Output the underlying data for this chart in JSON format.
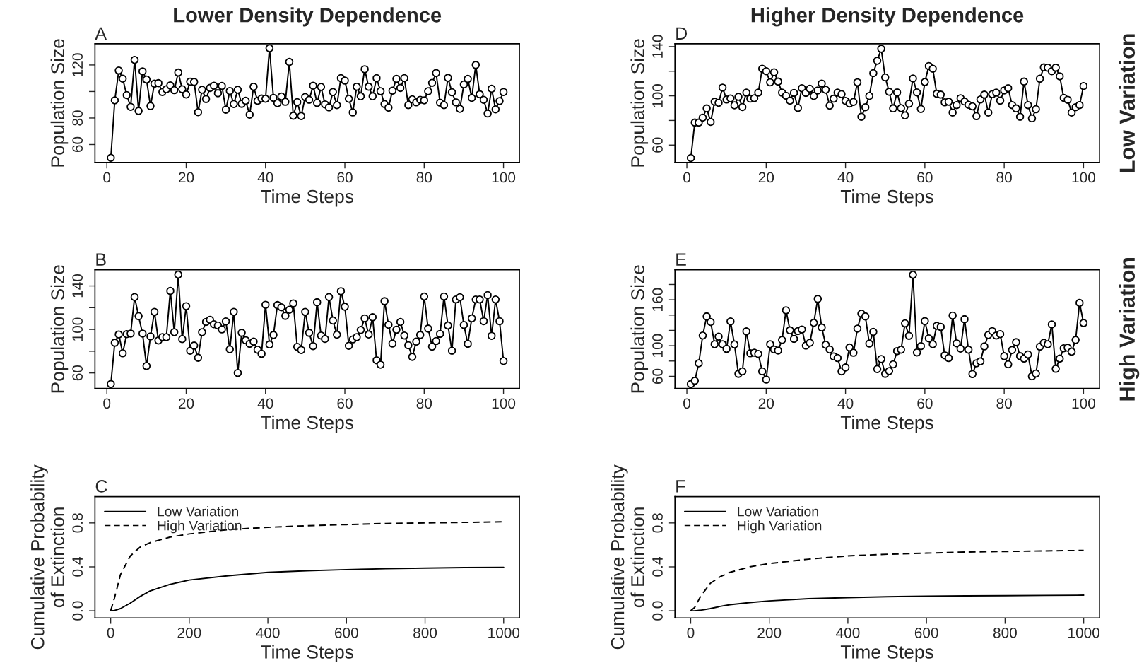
{
  "chart_data": [
    {
      "type": "line",
      "title": "Lower Density Dependence",
      "xlabel": "Time Steps",
      "ylabel": "Population Size",
      "annotations": [
        "A"
      ],
      "marker": "circle",
      "xlim": [
        -3,
        104
      ],
      "xticks": [
        0,
        20,
        40,
        60,
        80,
        100
      ],
      "ylim": [
        46.5,
        136
      ],
      "yticks": [
        60,
        80,
        {
          "value": 100,
          "label": null
        },
        120
      ],
      "x": [
        1,
        2,
        3,
        4,
        5,
        6,
        7,
        8,
        9,
        10,
        11,
        12,
        13,
        14,
        15,
        16,
        17,
        18,
        19,
        20,
        21,
        22,
        23,
        24,
        25,
        26,
        27,
        28,
        29,
        30,
        31,
        32,
        33,
        34,
        35,
        36,
        37,
        38,
        39,
        40,
        41,
        42,
        43,
        44,
        45,
        46,
        47,
        48,
        49,
        50,
        51,
        52,
        53,
        54,
        55,
        56,
        57,
        58,
        59,
        60,
        61,
        62,
        63,
        64,
        65,
        66,
        67,
        68,
        69,
        70,
        71,
        72,
        73,
        74,
        75,
        76,
        77,
        78,
        79,
        80,
        81,
        82,
        83,
        84,
        85,
        86,
        87,
        88,
        89,
        90,
        91,
        92,
        93,
        94,
        95,
        96,
        97,
        98,
        99,
        100
      ],
      "series": [
        {
          "color": "#000000",
          "values": [
            50,
            93.3,
            115.8,
            109.7,
            97.3,
            88.4,
            123.8,
            85.3,
            115.2,
            109,
            89,
            105.9,
            106.3,
            99.6,
            101.7,
            104.6,
            101,
            114.3,
            101.7,
            97.7,
            107.4,
            107.2,
            84.4,
            101.3,
            94.3,
            102.7,
            104.4,
            98.7,
            104.2,
            86.3,
            100.4,
            90.5,
            101.3,
            90.7,
            93,
            82.5,
            103.6,
            93,
            94.7,
            94.5,
            132.6,
            95.2,
            91.2,
            96.2,
            92.2,
            122.3,
            81.7,
            92,
            81.5,
            95.8,
            93.7,
            104.4,
            91.4,
            103.4,
            90.3,
            88,
            99.6,
            89.7,
            110.1,
            108.2,
            94.5,
            84.2,
            103.6,
            96.4,
            116.8,
            103.6,
            96.4,
            110.1,
            100.2,
            90.5,
            87.8,
            100.6,
            109.5,
            102.7,
            110.1,
            89.7,
            94.1,
            91.8,
            93.7,
            93.3,
            100.2,
            106.5,
            113.9,
            91.6,
            89.7,
            110.3,
            99.4,
            91.8,
            86.9,
            105.3,
            109.5,
            95.2,
            120,
            97.9,
            93.7,
            83.4,
            102.1,
            86.5,
            92.8,
            99.6
          ]
        }
      ]
    },
    {
      "type": "line",
      "xlabel": "Time Steps",
      "ylabel": "Population Size",
      "annotations": [
        "B"
      ],
      "marker": "circle",
      "xlim": [
        -3,
        104
      ],
      "xticks": [
        0,
        20,
        40,
        60,
        80,
        100
      ],
      "ylim": [
        45.7,
        154.8
      ],
      "yticks": [
        60,
        {
          "value": 80,
          "label": null
        },
        100,
        {
          "value": 120,
          "label": null
        },
        140
      ],
      "x": [
        1,
        2,
        3,
        4,
        5,
        6,
        7,
        8,
        9,
        10,
        11,
        12,
        13,
        14,
        15,
        16,
        17,
        18,
        19,
        20,
        21,
        22,
        23,
        24,
        25,
        26,
        27,
        28,
        29,
        30,
        31,
        32,
        33,
        34,
        35,
        36,
        37,
        38,
        39,
        40,
        41,
        42,
        43,
        44,
        45,
        46,
        47,
        48,
        49,
        50,
        51,
        52,
        53,
        54,
        55,
        56,
        57,
        58,
        59,
        60,
        61,
        62,
        63,
        64,
        65,
        66,
        67,
        68,
        69,
        70,
        71,
        72,
        73,
        74,
        75,
        76,
        77,
        78,
        79,
        80,
        81,
        82,
        83,
        84,
        85,
        86,
        87,
        88,
        89,
        90,
        91,
        92,
        93,
        94,
        95,
        96,
        97,
        98,
        99,
        100
      ],
      "series": [
        {
          "color": "#000000",
          "values": [
            49.8,
            87.8,
            95.4,
            78.1,
            95.7,
            96.2,
            129.8,
            112.2,
            96.2,
            66.4,
            93.6,
            116.1,
            89.8,
            92.9,
            92.9,
            135.4,
            97.5,
            150.4,
            91.1,
            121.4,
            80.4,
            85.2,
            74,
            97.5,
            106.9,
            108.9,
            104.8,
            103.6,
            100,
            107.4,
            81.7,
            116.1,
            60,
            96.9,
            90.1,
            86.8,
            88.8,
            81.4,
            77.6,
            122.7,
            86.2,
            94.9,
            122.4,
            120.4,
            112.5,
            118.1,
            124,
            84,
            81.1,
            116.1,
            96.9,
            84.7,
            125,
            94.4,
            91.3,
            129.8,
            108.2,
            95.2,
            135.2,
            120.9,
            85,
            90.8,
            92.9,
            99.5,
            110.2,
            95.4,
            111.2,
            71.7,
            67.6,
            126,
            104.3,
            87,
            99.7,
            106.9,
            94.4,
            85.5,
            74.8,
            88.8,
            94.9,
            130.3,
            100.8,
            84.2,
            89.3,
            95.9,
            130.3,
            103.6,
            80.4,
            127.5,
            129.6,
            104.1,
            86.8,
            110.2,
            127.5,
            127.5,
            107.6,
            131.6,
            94.1,
            127.5,
            107.6,
            71
          ]
        }
      ]
    },
    {
      "type": "line",
      "xlabel": "Time Steps",
      "ylabel": "Cumulative Probability\nof Extinction",
      "annotations": [
        "C"
      ],
      "marker": "none",
      "legend": "top left",
      "xlim": [
        -40,
        1040
      ],
      "xticks": [
        0,
        200,
        400,
        600,
        800,
        1000
      ],
      "ylim": [
        -0.065,
        1.04
      ],
      "yticks": [
        {
          "value": 0,
          "label": "0.0"
        },
        0.4,
        0.8
      ],
      "series": [
        {
          "name": "Low Variation",
          "color": "#000000",
          "line_style": "solid",
          "x": [
            0,
            10,
            25,
            50,
            75,
            100,
            150,
            200,
            300,
            400,
            500,
            600,
            700,
            800,
            900,
            1000
          ],
          "values": [
            0,
            0.003,
            0.02,
            0.07,
            0.13,
            0.18,
            0.24,
            0.28,
            0.32,
            0.35,
            0.365,
            0.375,
            0.383,
            0.389,
            0.393,
            0.395
          ]
        },
        {
          "name": "High Variation",
          "color": "#000000",
          "line_style": "dashed",
          "x": [
            0,
            10,
            25,
            50,
            75,
            100,
            150,
            200,
            300,
            400,
            500,
            600,
            700,
            800,
            900,
            1000
          ],
          "values": [
            0,
            0.12,
            0.33,
            0.5,
            0.58,
            0.62,
            0.67,
            0.7,
            0.74,
            0.76,
            0.775,
            0.785,
            0.795,
            0.8,
            0.805,
            0.81
          ]
        }
      ]
    },
    {
      "type": "line",
      "title": "Higher Density Dependence",
      "xlabel": "Time Steps",
      "ylabel": "Population Size",
      "annotations": [
        "D",
        "Low Variation"
      ],
      "marker": "circle",
      "xlim": [
        -3,
        104
      ],
      "xticks": [
        0,
        20,
        40,
        60,
        80,
        100
      ],
      "ylim": [
        45.9,
        142.3
      ],
      "yticks": [
        60,
        {
          "value": 80,
          "label": null
        },
        100,
        {
          "value": 120,
          "label": null
        },
        140
      ],
      "x": [
        1,
        2,
        3,
        4,
        5,
        6,
        7,
        8,
        9,
        10,
        11,
        12,
        13,
        14,
        15,
        16,
        17,
        18,
        19,
        20,
        21,
        22,
        23,
        24,
        25,
        26,
        27,
        28,
        29,
        30,
        31,
        32,
        33,
        34,
        35,
        36,
        37,
        38,
        39,
        40,
        41,
        42,
        43,
        44,
        45,
        46,
        47,
        48,
        49,
        50,
        51,
        52,
        53,
        54,
        55,
        56,
        57,
        58,
        59,
        60,
        61,
        62,
        63,
        64,
        65,
        66,
        67,
        68,
        69,
        70,
        71,
        72,
        73,
        74,
        75,
        76,
        77,
        78,
        79,
        80,
        81,
        82,
        83,
        84,
        85,
        86,
        87,
        88,
        89,
        90,
        91,
        92,
        93,
        94,
        95,
        96,
        97,
        98,
        99,
        100
      ],
      "series": [
        {
          "color": "#000000",
          "values": [
            49.5,
            78.3,
            78.3,
            82.3,
            89.8,
            78.8,
            95.2,
            94.3,
            106.7,
            97,
            97.9,
            92.3,
            99.2,
            90.9,
            102.6,
            97.7,
            98.1,
            102.6,
            122,
            120,
            111,
            119.1,
            111.6,
            102.6,
            100.1,
            96.1,
            102.4,
            90.2,
            106.2,
            102.4,
            105.8,
            99.9,
            104.4,
            110,
            104.9,
            92,
            97.7,
            102.6,
            101.3,
            95.9,
            93.8,
            95,
            111,
            83,
            90.7,
            99.9,
            118.4,
            128.5,
            138.2,
            115,
            103.3,
            89.8,
            102.8,
            90,
            84.1,
            93.6,
            114.1,
            102.8,
            89.3,
            111.2,
            124.2,
            122,
            101.7,
            101,
            94.7,
            95.2,
            86.4,
            92.5,
            98.1,
            95.4,
            92.7,
            91.4,
            83.5,
            97,
            101,
            86.4,
            101.3,
            102.6,
            96.1,
            104.4,
            106.2,
            92.5,
            89.8,
            83,
            111.6,
            92.5,
            81.7,
            89.1,
            113.9,
            123.1,
            122.9,
            120,
            122.9,
            115.9,
            98.3,
            96.8,
            86.4,
            90.7,
            92.5,
            108
          ]
        }
      ]
    },
    {
      "type": "line",
      "xlabel": "Time Steps",
      "ylabel": "Population Size",
      "annotations": [
        "E",
        "High Variation"
      ],
      "marker": "circle",
      "xlim": [
        -3,
        104
      ],
      "xticks": [
        0,
        20,
        40,
        60,
        80,
        100
      ],
      "ylim": [
        44.1,
        199.1
      ],
      "yticks": [
        60,
        {
          "value": 80,
          "label": null
        },
        100,
        {
          "value": 120,
          "label": null
        },
        {
          "value": 140,
          "label": null
        },
        160,
        {
          "value": 180,
          "label": null
        }
      ],
      "x": [
        1,
        2,
        3,
        4,
        5,
        6,
        7,
        8,
        9,
        10,
        11,
        12,
        13,
        14,
        15,
        16,
        17,
        18,
        19,
        20,
        21,
        22,
        23,
        24,
        25,
        26,
        27,
        28,
        29,
        30,
        31,
        32,
        33,
        34,
        35,
        36,
        37,
        38,
        39,
        40,
        41,
        42,
        43,
        44,
        45,
        46,
        47,
        48,
        49,
        50,
        51,
        52,
        53,
        54,
        55,
        56,
        57,
        58,
        59,
        60,
        61,
        62,
        63,
        64,
        65,
        66,
        67,
        68,
        69,
        70,
        71,
        72,
        73,
        74,
        75,
        76,
        77,
        78,
        79,
        80,
        81,
        82,
        83,
        84,
        85,
        86,
        87,
        88,
        89,
        90,
        91,
        92,
        93,
        94,
        95,
        96,
        97,
        98,
        99,
        100
      ],
      "series": [
        {
          "color": "#000000",
          "values": [
            49.9,
            54.2,
            77,
            113.3,
            138.3,
            131,
            102,
            111.8,
            102,
            95.9,
            131.7,
            101.7,
            63.3,
            66.5,
            118.7,
            90.1,
            90.8,
            89.3,
            66.5,
            55.7,
            102,
            95.1,
            93.7,
            107.5,
            146.2,
            120.1,
            108.9,
            119.1,
            121.2,
            100.2,
            103.8,
            129.9,
            161.1,
            123.8,
            101.3,
            95.1,
            86.1,
            83.9,
            66.5,
            71.6,
            97.7,
            90.8,
            122.3,
            141.9,
            138.3,
            102.8,
            118,
            69.4,
            82.5,
            63.3,
            66.9,
            75.6,
            93,
            94.8,
            129.2,
            112.9,
            192.6,
            91.2,
            99.5,
            132.1,
            109.6,
            102,
            125.9,
            124.5,
            87.5,
            83.9,
            139.3,
            103.1,
            96.2,
            134.6,
            94.8,
            62.9,
            77,
            79.6,
            99.1,
            114,
            119.1,
            113.3,
            115.1,
            86.4,
            75.6,
            94.4,
            104.6,
            86.4,
            83.2,
            88.6,
            60,
            63.6,
            98.8,
            103.8,
            102,
            127.8,
            69.8,
            83.2,
            96.6,
            97.3,
            92.2,
            107.5,
            156,
            129.6
          ]
        }
      ]
    },
    {
      "type": "line",
      "xlabel": "Time Steps",
      "ylabel": "Cumulative Probability\nof Extinction",
      "annotations": [
        "F"
      ],
      "marker": "none",
      "legend": "top left",
      "xlim": [
        -40,
        1040
      ],
      "xticks": [
        0,
        200,
        400,
        600,
        800,
        1000
      ],
      "ylim": [
        -0.065,
        1.04
      ],
      "yticks": [
        {
          "value": 0,
          "label": "0.0"
        },
        0.4,
        0.8
      ],
      "series": [
        {
          "name": "Low Variation",
          "color": "#000000",
          "line_style": "solid",
          "x": [
            0,
            10,
            25,
            50,
            75,
            100,
            150,
            200,
            300,
            400,
            500,
            600,
            700,
            800,
            900,
            1000
          ],
          "values": [
            0,
            0,
            0.005,
            0.02,
            0.04,
            0.055,
            0.075,
            0.09,
            0.11,
            0.12,
            0.128,
            0.133,
            0.136,
            0.138,
            0.14,
            0.142
          ]
        },
        {
          "name": "High Variation",
          "color": "#000000",
          "line_style": "dashed",
          "x": [
            0,
            10,
            25,
            50,
            75,
            100,
            150,
            200,
            300,
            400,
            500,
            600,
            700,
            800,
            900,
            1000
          ],
          "values": [
            0,
            0.03,
            0.13,
            0.25,
            0.31,
            0.35,
            0.4,
            0.43,
            0.47,
            0.5,
            0.515,
            0.525,
            0.535,
            0.54,
            0.545,
            0.55
          ]
        }
      ]
    }
  ]
}
